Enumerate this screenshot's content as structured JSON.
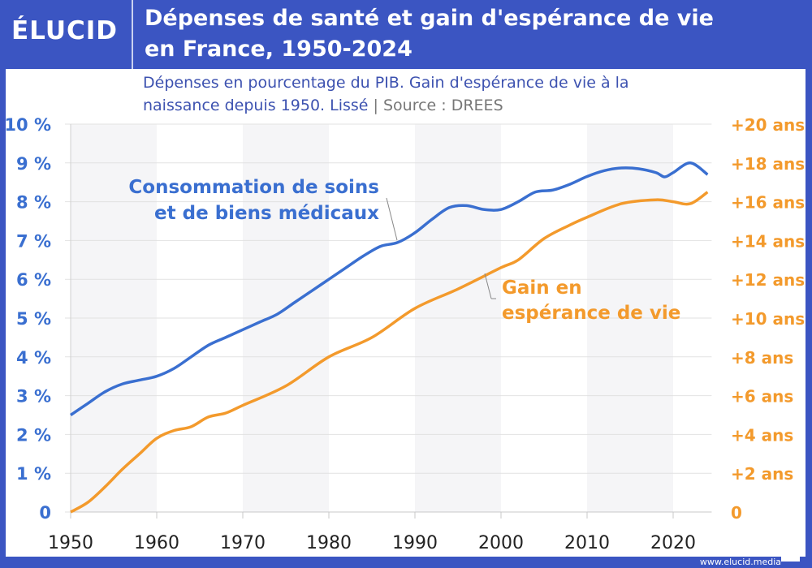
{
  "brand": {
    "logo": "ÉLUCID",
    "website": "www.elucid.media"
  },
  "header": {
    "title_line1": "Dépenses de santé et gain d'espérance de vie",
    "title_line2": "en France, 1950-2024"
  },
  "subtitle": {
    "line1": "Dépenses en pourcentage du PIB. Gain d'espérance de vie à la",
    "line2": "naissance depuis 1950. Lissé",
    "separator": "|",
    "source": "Source : DREES"
  },
  "colors": {
    "blue": "#3a6fd0",
    "orange": "#f39a2c",
    "frame": "#3b55c2"
  },
  "chart_data": {
    "type": "line",
    "xlim": [
      1950,
      2024
    ],
    "x_ticks": [
      "1950",
      "1960",
      "1970",
      "1980",
      "1990",
      "2000",
      "2010",
      "2020"
    ],
    "y_left": {
      "range": [
        0,
        10
      ],
      "ticks": [
        "0",
        "1 %",
        "2 %",
        "3 %",
        "4 %",
        "5 %",
        "6 %",
        "7 %",
        "8 %",
        "9 %",
        "10 %"
      ]
    },
    "y_right": {
      "range": [
        0,
        20
      ],
      "ticks": [
        "0",
        "+2 ans",
        "+4 ans",
        "+6 ans",
        "+8 ans",
        "+10 ans",
        "+12 ans",
        "+14 ans",
        "+16 ans",
        "+18 ans",
        "+20 ans"
      ]
    },
    "grid": true,
    "alternating_bands": true,
    "series": [
      {
        "name": "Consommation de soins et de biens médicaux",
        "label_lines": [
          "Consommation de soins",
          "et de biens médicaux"
        ],
        "axis": "left",
        "color": "#3a6fd0",
        "x": [
          1950,
          1952,
          1954,
          1956,
          1958,
          1960,
          1962,
          1964,
          1966,
          1968,
          1970,
          1972,
          1974,
          1976,
          1978,
          1980,
          1982,
          1984,
          1986,
          1988,
          1990,
          1992,
          1994,
          1996,
          1998,
          2000,
          2002,
          2004,
          2006,
          2008,
          2010,
          2012,
          2014,
          2016,
          2018,
          2019,
          2020,
          2022,
          2024
        ],
        "y": [
          2.5,
          2.8,
          3.1,
          3.3,
          3.4,
          3.5,
          3.7,
          4.0,
          4.3,
          4.5,
          4.7,
          4.9,
          5.1,
          5.4,
          5.7,
          6.0,
          6.3,
          6.6,
          6.85,
          6.95,
          7.2,
          7.55,
          7.85,
          7.9,
          7.8,
          7.8,
          8.0,
          8.25,
          8.3,
          8.45,
          8.65,
          8.8,
          8.87,
          8.85,
          8.75,
          8.64,
          8.75,
          9.0,
          8.7
        ]
      },
      {
        "name": "Gain en espérance de vie",
        "label_lines": [
          "Gain en",
          "espérance de vie"
        ],
        "axis": "right",
        "color": "#f39a2c",
        "x": [
          1950,
          1952,
          1954,
          1956,
          1958,
          1960,
          1962,
          1964,
          1966,
          1968,
          1970,
          1975,
          1980,
          1985,
          1990,
          1995,
          2000,
          2002,
          2005,
          2008,
          2010,
          2014,
          2018,
          2020,
          2022,
          2024
        ],
        "y": [
          0,
          0.5,
          1.3,
          2.2,
          3.0,
          3.8,
          4.2,
          4.4,
          4.9,
          5.1,
          5.5,
          6.5,
          8.0,
          9.0,
          10.5,
          11.5,
          12.6,
          13.0,
          14.1,
          14.8,
          15.2,
          15.9,
          16.1,
          16.0,
          15.9,
          16.5
        ]
      }
    ]
  }
}
